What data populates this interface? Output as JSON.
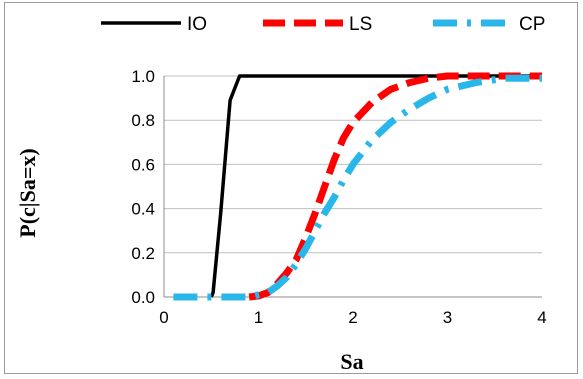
{
  "chart_data": {
    "type": "line",
    "title": "",
    "xlabel": "Sa",
    "ylabel": "P(c|Sa=x)",
    "xlim": [
      0,
      4
    ],
    "ylim": [
      0,
      1
    ],
    "x_ticks": [
      "0",
      "1",
      "2",
      "3",
      "4"
    ],
    "y_ticks": [
      "0.0",
      "0.2",
      "0.4",
      "0.6",
      "0.8",
      "1.0"
    ],
    "grid": "horizontal",
    "legend_position": "top",
    "series": [
      {
        "name": "IO",
        "color": "#000000",
        "style": "solid",
        "points": [
          [
            0.5,
            0.0
          ],
          [
            0.52,
            0.02
          ],
          [
            0.6,
            0.38
          ],
          [
            0.7,
            0.89
          ],
          [
            0.8,
            1.0
          ],
          [
            1.0,
            1.0
          ],
          [
            2.0,
            1.0
          ],
          [
            3.0,
            1.0
          ],
          [
            4.0,
            1.0
          ]
        ]
      },
      {
        "name": "LS",
        "color": "#ff0000",
        "style": "dashed",
        "points": [
          [
            0.9,
            0.0
          ],
          [
            1.0,
            0.005
          ],
          [
            1.1,
            0.02
          ],
          [
            1.2,
            0.06
          ],
          [
            1.3,
            0.11
          ],
          [
            1.4,
            0.17
          ],
          [
            1.5,
            0.27
          ],
          [
            1.6,
            0.38
          ],
          [
            1.7,
            0.5
          ],
          [
            1.8,
            0.62
          ],
          [
            1.9,
            0.72
          ],
          [
            2.0,
            0.79
          ],
          [
            2.2,
            0.88
          ],
          [
            2.4,
            0.94
          ],
          [
            2.6,
            0.97
          ],
          [
            2.8,
            0.99
          ],
          [
            3.0,
            1.0
          ],
          [
            3.5,
            1.0
          ],
          [
            4.0,
            1.0
          ]
        ]
      },
      {
        "name": "CP",
        "color": "#29b6e8",
        "style": "dash-dot",
        "points": [
          [
            0.1,
            0.0
          ],
          [
            0.5,
            0.0
          ],
          [
            0.9,
            0.0
          ],
          [
            1.1,
            0.02
          ],
          [
            1.2,
            0.05
          ],
          [
            1.3,
            0.09
          ],
          [
            1.4,
            0.15
          ],
          [
            1.5,
            0.22
          ],
          [
            1.6,
            0.3
          ],
          [
            1.7,
            0.38
          ],
          [
            1.8,
            0.45
          ],
          [
            1.9,
            0.53
          ],
          [
            2.0,
            0.6
          ],
          [
            2.2,
            0.71
          ],
          [
            2.4,
            0.79
          ],
          [
            2.6,
            0.85
          ],
          [
            2.8,
            0.9
          ],
          [
            3.0,
            0.94
          ],
          [
            3.3,
            0.97
          ],
          [
            3.6,
            0.99
          ],
          [
            4.0,
            0.99
          ]
        ]
      }
    ]
  }
}
